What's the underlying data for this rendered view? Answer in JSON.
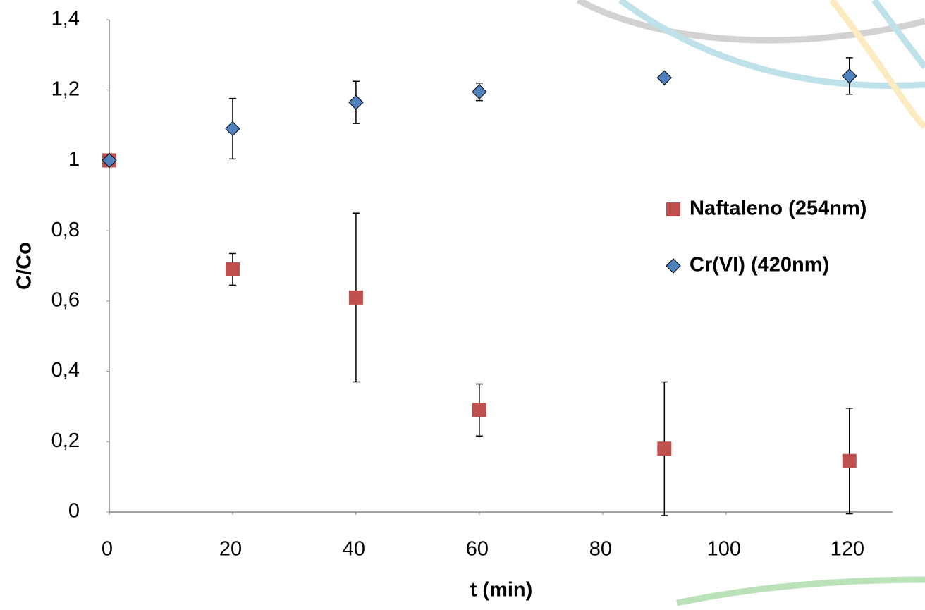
{
  "chart_data": {
    "type": "scatter",
    "xlabel": "t (min)",
    "ylabel": "C/Co",
    "x": [
      0,
      20,
      40,
      60,
      90,
      120
    ],
    "series": [
      {
        "name": "Naftaleno (254nm)",
        "color": "#c0504d",
        "marker": "square",
        "values": [
          1,
          0.69,
          0.61,
          0.29,
          0.18,
          0.145
        ],
        "errors": [
          0,
          0.045,
          0.24,
          0.074,
          0.19,
          0.15
        ]
      },
      {
        "name": "Cr(VI) (420nm)",
        "color": "#4f81bd",
        "marker": "diamond",
        "values": [
          1,
          1.09,
          1.165,
          1.195,
          1.235,
          1.24
        ],
        "errors": [
          0,
          0.086,
          0.06,
          0.025,
          0.005,
          0.052
        ]
      }
    ],
    "xlim": [
      0,
      127
    ],
    "xticks": [
      0,
      20,
      40,
      60,
      80,
      100,
      120
    ],
    "ylim": [
      0,
      1.4
    ],
    "yticks": [
      0,
      {
        "value": 0.2,
        "label": "0,2"
      },
      {
        "value": 0.4,
        "label": "0,4"
      },
      {
        "value": 0.6,
        "label": "0,6"
      },
      {
        "value": 0.8,
        "label": "0,8"
      },
      1,
      {
        "value": 1.2,
        "label": "1,2"
      },
      {
        "value": 1.4,
        "label": "1,4"
      }
    ],
    "legend": "right",
    "grid": false
  }
}
